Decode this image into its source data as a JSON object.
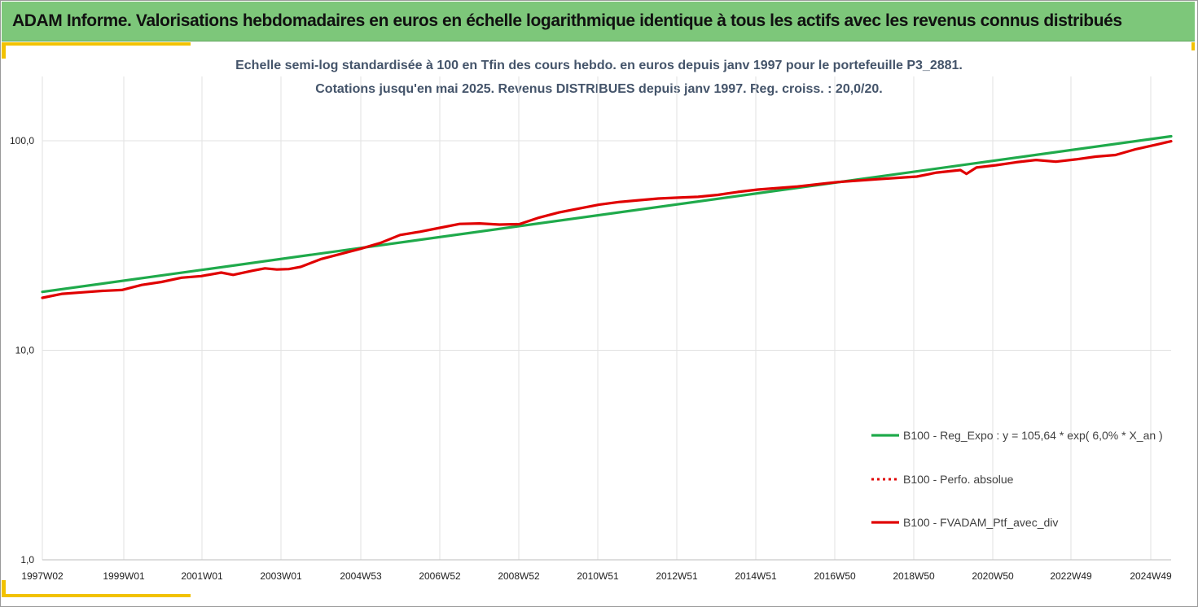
{
  "header": {
    "title": "ADAM Informe. Valorisations hebdomadaires en euros en échelle logarithmique identique à tous les actifs avec les revenus connus distribués"
  },
  "chart_data": {
    "type": "line",
    "title": "Echelle semi-log standardisée à 100 en Tfin des cours hebdo. en euros depuis janv 1997 pour le portefeuille P3_2881.",
    "subtitle": "Cotations  jusqu'en mai 2025. Revenus DISTRIBUES depuis janv 1997. Reg. croiss. : 20,0/20.",
    "yscale": "log",
    "ylim": [
      1,
      200
    ],
    "xlim": [
      1997.0,
      2025.4
    ],
    "y_ticks": [
      {
        "value": 1,
        "label": "1,0"
      },
      {
        "value": 10,
        "label": "10,0"
      },
      {
        "value": 100,
        "label": "100,0"
      }
    ],
    "x_ticks": [
      {
        "value": 1997.03,
        "label": "1997W02"
      },
      {
        "value": 1999.0,
        "label": "1999W01"
      },
      {
        "value": 2001.0,
        "label": "2001W01"
      },
      {
        "value": 2003.0,
        "label": "2003W01"
      },
      {
        "value": 2005.0,
        "label": "2004W53"
      },
      {
        "value": 2006.98,
        "label": "2006W52"
      },
      {
        "value": 2008.98,
        "label": "2008W52"
      },
      {
        "value": 2010.96,
        "label": "2010W51"
      },
      {
        "value": 2012.96,
        "label": "2012W51"
      },
      {
        "value": 2014.96,
        "label": "2014W51"
      },
      {
        "value": 2016.94,
        "label": "2016W50"
      },
      {
        "value": 2018.94,
        "label": "2018W50"
      },
      {
        "value": 2020.94,
        "label": "2020W50"
      },
      {
        "value": 2022.92,
        "label": "2022W49"
      },
      {
        "value": 2024.92,
        "label": "2024W49"
      }
    ],
    "grid": true,
    "legend_position": "right",
    "series": [
      {
        "name": "B100 - Reg_Expo : y = 105,64 * exp( 6,0% *  X_an )",
        "color": "#1faa4b",
        "style": "solid",
        "points": [
          [
            1997.0,
            19.0
          ],
          [
            2025.4,
            105.0
          ]
        ]
      },
      {
        "name": "B100 - Perfo. absolue",
        "color": "#e00000",
        "style": "dotted",
        "points": []
      },
      {
        "name": "B100 - FVADAM_Ptf_avec_div",
        "color": "#e00000",
        "style": "solid",
        "points": [
          [
            1997.0,
            17.8
          ],
          [
            1997.5,
            18.6
          ],
          [
            1998.0,
            18.9
          ],
          [
            1998.5,
            19.2
          ],
          [
            1999.0,
            19.4
          ],
          [
            1999.5,
            20.5
          ],
          [
            2000.0,
            21.2
          ],
          [
            2000.5,
            22.2
          ],
          [
            2001.0,
            22.6
          ],
          [
            2001.5,
            23.5
          ],
          [
            2001.8,
            22.9
          ],
          [
            2002.3,
            24.0
          ],
          [
            2002.6,
            24.6
          ],
          [
            2002.9,
            24.3
          ],
          [
            2003.2,
            24.4
          ],
          [
            2003.5,
            25.0
          ],
          [
            2004.0,
            27.2
          ],
          [
            2004.5,
            28.8
          ],
          [
            2005.0,
            30.5
          ],
          [
            2005.5,
            32.5
          ],
          [
            2006.0,
            35.5
          ],
          [
            2006.5,
            36.8
          ],
          [
            2007.0,
            38.4
          ],
          [
            2007.5,
            40.1
          ],
          [
            2008.0,
            40.3
          ],
          [
            2008.5,
            39.8
          ],
          [
            2009.0,
            40.0
          ],
          [
            2009.5,
            43.0
          ],
          [
            2010.0,
            45.5
          ],
          [
            2010.5,
            47.5
          ],
          [
            2011.0,
            49.5
          ],
          [
            2011.5,
            51.0
          ],
          [
            2012.0,
            52.0
          ],
          [
            2012.5,
            53.0
          ],
          [
            2013.0,
            53.5
          ],
          [
            2013.5,
            54.0
          ],
          [
            2014.0,
            55.2
          ],
          [
            2014.5,
            57.0
          ],
          [
            2015.0,
            58.5
          ],
          [
            2015.5,
            59.5
          ],
          [
            2016.0,
            60.5
          ],
          [
            2016.5,
            62.0
          ],
          [
            2017.0,
            63.5
          ],
          [
            2017.5,
            64.5
          ],
          [
            2018.0,
            65.5
          ],
          [
            2018.5,
            66.5
          ],
          [
            2019.0,
            67.5
          ],
          [
            2019.5,
            70.5
          ],
          [
            2020.1,
            72.5
          ],
          [
            2020.25,
            69.5
          ],
          [
            2020.5,
            74.5
          ],
          [
            2021.0,
            76.5
          ],
          [
            2021.5,
            79.0
          ],
          [
            2022.0,
            81.0
          ],
          [
            2022.5,
            79.5
          ],
          [
            2023.0,
            81.5
          ],
          [
            2023.5,
            84.0
          ],
          [
            2024.0,
            85.5
          ],
          [
            2024.5,
            91.0
          ],
          [
            2025.0,
            95.5
          ],
          [
            2025.4,
            99.5
          ]
        ]
      }
    ]
  }
}
